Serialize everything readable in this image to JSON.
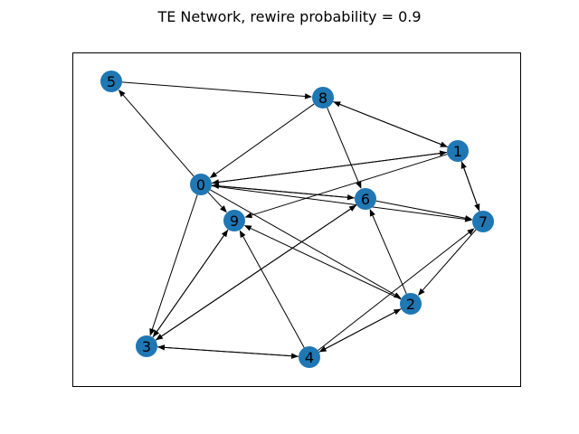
{
  "figure": {
    "title": "TE Network, rewire probability = 0.9"
  },
  "graph": {
    "node_color": "#1f77b4",
    "edge_color": "#000000",
    "nodes": [
      {
        "id": "0",
        "label": "0"
      },
      {
        "id": "1",
        "label": "1"
      },
      {
        "id": "2",
        "label": "2"
      },
      {
        "id": "3",
        "label": "3"
      },
      {
        "id": "4",
        "label": "4"
      },
      {
        "id": "5",
        "label": "5"
      },
      {
        "id": "6",
        "label": "6"
      },
      {
        "id": "7",
        "label": "7"
      },
      {
        "id": "8",
        "label": "8"
      },
      {
        "id": "9",
        "label": "9"
      }
    ],
    "edges": [
      {
        "from": "0",
        "to": "5"
      },
      {
        "from": "0",
        "to": "1"
      },
      {
        "from": "1",
        "to": "0"
      },
      {
        "from": "0",
        "to": "6"
      },
      {
        "from": "6",
        "to": "0"
      },
      {
        "from": "0",
        "to": "7"
      },
      {
        "from": "0",
        "to": "9"
      },
      {
        "from": "0",
        "to": "2"
      },
      {
        "from": "0",
        "to": "3"
      },
      {
        "from": "8",
        "to": "0"
      },
      {
        "from": "5",
        "to": "8"
      },
      {
        "from": "8",
        "to": "1"
      },
      {
        "from": "1",
        "to": "8"
      },
      {
        "from": "8",
        "to": "6"
      },
      {
        "from": "1",
        "to": "7"
      },
      {
        "from": "7",
        "to": "1"
      },
      {
        "from": "1",
        "to": "9"
      },
      {
        "from": "6",
        "to": "7"
      },
      {
        "from": "2",
        "to": "6"
      },
      {
        "from": "2",
        "to": "9"
      },
      {
        "from": "7",
        "to": "2"
      },
      {
        "from": "4",
        "to": "7"
      },
      {
        "from": "2",
        "to": "4"
      },
      {
        "from": "4",
        "to": "2"
      },
      {
        "from": "3",
        "to": "6"
      },
      {
        "from": "6",
        "to": "3"
      },
      {
        "from": "3",
        "to": "9"
      },
      {
        "from": "9",
        "to": "3"
      },
      {
        "from": "3",
        "to": "4"
      },
      {
        "from": "4",
        "to": "3"
      },
      {
        "from": "4",
        "to": "9"
      }
    ]
  }
}
